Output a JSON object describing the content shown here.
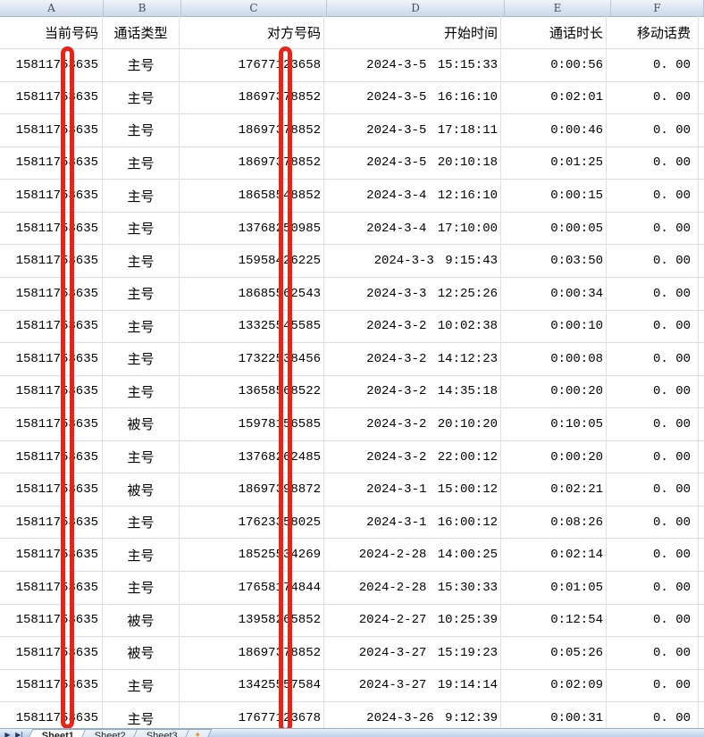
{
  "app": "spreadsheet-call-log",
  "columns": {
    "letters": [
      "A",
      "B",
      "C",
      "D",
      "E",
      "F"
    ],
    "headers": [
      "当前号码",
      "通话类型",
      "对方号码",
      "开始时间",
      "通话时长",
      "移动话费"
    ]
  },
  "rows": [
    [
      "15811753635",
      "主号",
      "17677123658",
      "2024-3-5 15:15:33",
      "0:00:56",
      "0. 00"
    ],
    [
      "15811753635",
      "主号",
      "18697378852",
      "2024-3-5 16:16:10",
      "0:02:01",
      "0. 00"
    ],
    [
      "15811753635",
      "主号",
      "18697378852",
      "2024-3-5 17:18:11",
      "0:00:46",
      "0. 00"
    ],
    [
      "15811753635",
      "主号",
      "18697378852",
      "2024-3-5 20:10:18",
      "0:01:25",
      "0. 00"
    ],
    [
      "15811753635",
      "主号",
      "18658548852",
      "2024-3-4 12:16:10",
      "0:00:15",
      "0. 00"
    ],
    [
      "15811753635",
      "主号",
      "13768250985",
      "2024-3-4 17:10:00",
      "0:00:05",
      "0. 00"
    ],
    [
      "15811753635",
      "主号",
      "15958426225",
      "2024-3-3 9:15:43",
      "0:03:50",
      "0. 00"
    ],
    [
      "15811753635",
      "主号",
      "18685562543",
      "2024-3-3 12:25:26",
      "0:00:34",
      "0. 00"
    ],
    [
      "15811753635",
      "主号",
      "13325545585",
      "2024-3-2 10:02:38",
      "0:00:10",
      "0. 00"
    ],
    [
      "15811753635",
      "主号",
      "17322538456",
      "2024-3-2 14:12:23",
      "0:00:08",
      "0. 00"
    ],
    [
      "15811753635",
      "主号",
      "13658568522",
      "2024-3-2 14:35:18",
      "0:00:20",
      "0. 00"
    ],
    [
      "15811753635",
      "被号",
      "15978156585",
      "2024-3-2 20:10:20",
      "0:10:05",
      "0. 00"
    ],
    [
      "15811753635",
      "主号",
      "13768262485",
      "2024-3-2 22:00:12",
      "0:00:20",
      "0. 00"
    ],
    [
      "15811753635",
      "被号",
      "18697398872",
      "2024-3-1 15:00:12",
      "0:02:21",
      "0. 00"
    ],
    [
      "15811753635",
      "主号",
      "17623358025",
      "2024-3-1 16:00:12",
      "0:08:26",
      "0. 00"
    ],
    [
      "15811753635",
      "主号",
      "18525534269",
      "2024-2-28 14:00:25",
      "0:02:14",
      "0. 00"
    ],
    [
      "15811753635",
      "主号",
      "17658174844",
      "2024-2-28 15:30:33",
      "0:01:05",
      "0. 00"
    ],
    [
      "15811753635",
      "被号",
      "13958265852",
      "2024-2-27 10:25:39",
      "0:12:54",
      "0. 00"
    ],
    [
      "15811753635",
      "被号",
      "18697378852",
      "2024-3-27 15:19:23",
      "0:05:26",
      "0. 00"
    ],
    [
      "15811753635",
      "主号",
      "13425557584",
      "2024-3-27 19:14:14",
      "0:02:09",
      "0. 00"
    ],
    [
      "15811753635",
      "主号",
      "17677123678",
      "2024-3-26 9:12:39",
      "0:00:31",
      "0. 00"
    ]
  ],
  "annotations": {
    "description": "Two vertical red rounded-rectangle redaction bars drawn over the 6th digit of the phone numbers in columns A and C",
    "bars": [
      {
        "over_column": "A"
      },
      {
        "over_column": "C"
      }
    ]
  },
  "footer": {
    "nav_buttons": [
      {
        "icon": "scroll-tabs-right-icon",
        "glyph": "▶"
      },
      {
        "icon": "scroll-tabs-last-icon",
        "glyph": "▶|"
      }
    ],
    "tabs": [
      {
        "label": "Sheet1",
        "active": true
      },
      {
        "label": "Sheet2",
        "active": false
      },
      {
        "label": "Sheet3",
        "active": false
      }
    ],
    "insert_tab_glyph": "✦"
  },
  "colors": {
    "redaction_red": "#e8231a",
    "grid_line": "#d5dde8",
    "header_band_top": "#eff4fa",
    "header_band_bottom": "#ccd8e8",
    "header_border": "#9eb6ce",
    "tabbar_background": "#bcd1e8",
    "insert_tab_star": "#e09a3e",
    "cell_text": "#000000"
  }
}
